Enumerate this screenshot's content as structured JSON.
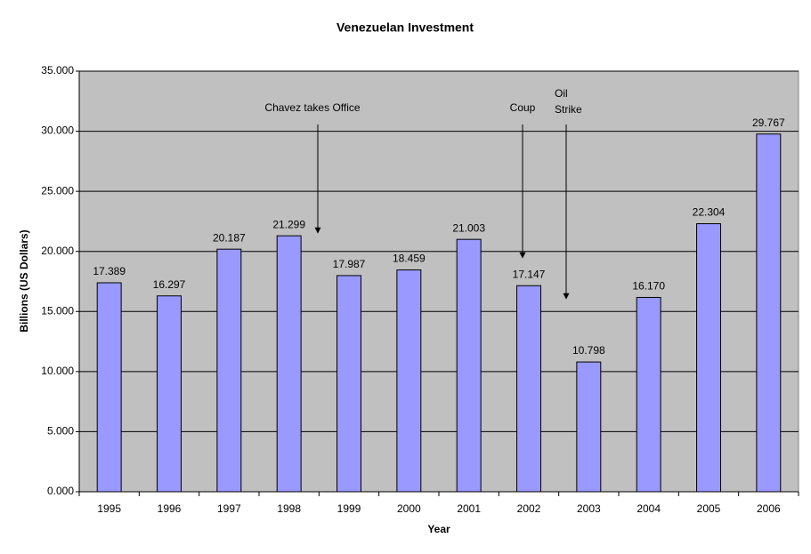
{
  "chart_data": {
    "type": "bar",
    "title": "Venezuelan Investment",
    "x_label": "Year",
    "y_label": "Billions (US Dollars)",
    "categories": [
      "1995",
      "1996",
      "1997",
      "1998",
      "1999",
      "2000",
      "2001",
      "2002",
      "2003",
      "2004",
      "2005",
      "2006"
    ],
    "values": [
      17.389,
      16.297,
      20.187,
      21.299,
      17.987,
      18.459,
      21.003,
      17.147,
      10.798,
      16.17,
      22.304,
      29.767
    ],
    "value_labels": [
      "17.389",
      "16.297",
      "20.187",
      "21.299",
      "17.987",
      "18.459",
      "21.003",
      "17.147",
      "10.798",
      "16.170",
      "22.304",
      "29.767"
    ],
    "color": "#9999ff",
    "ylim": [
      0,
      35
    ],
    "yticks": [
      {
        "value": 0,
        "label": "0.000"
      },
      {
        "value": 5,
        "label": "5.000"
      },
      {
        "value": 10,
        "label": "10.000"
      },
      {
        "value": 15,
        "label": "15.000"
      },
      {
        "value": 20,
        "label": "20.000"
      },
      {
        "value": 25,
        "label": "25.000"
      },
      {
        "value": 30,
        "label": "30.000"
      },
      {
        "value": 35,
        "label": "35.000"
      }
    ],
    "grid": true,
    "annotations": [
      [
        "Chavez takes Office"
      ],
      [
        "Coup"
      ],
      [
        "Oil",
        "Strike"
      ]
    ]
  }
}
